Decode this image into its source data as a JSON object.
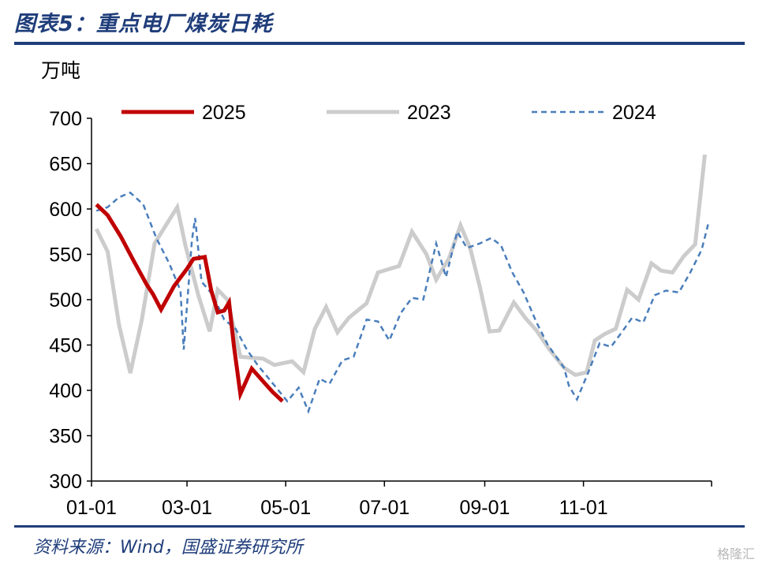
{
  "header": {
    "title": "图表5：重点电厂煤炭日耗"
  },
  "footer": {
    "source": "资料来源：Wind，国盛证券研究所",
    "watermark": "格隆汇"
  },
  "chart_data": {
    "type": "line",
    "title": "图表5：重点电厂煤炭日耗",
    "ylabel": "万吨",
    "ylim": [
      300,
      700
    ],
    "yticks": [
      300,
      350,
      400,
      450,
      500,
      550,
      600,
      650,
      700
    ],
    "xlim": [
      0,
      364
    ],
    "xticks": [
      {
        "label": "01-01",
        "day": 0
      },
      {
        "label": "03-01",
        "day": 59
      },
      {
        "label": "05-01",
        "day": 120
      },
      {
        "label": "07-01",
        "day": 181
      },
      {
        "label": "09-01",
        "day": 243
      },
      {
        "label": "11-01",
        "day": 304
      }
    ],
    "legend": {
      "placement": "top"
    },
    "grid": false,
    "series": [
      {
        "name": "2025",
        "color": "#c00000",
        "style": "solid-thick",
        "points": [
          [
            3,
            605
          ],
          [
            10,
            593
          ],
          [
            18,
            570
          ],
          [
            26,
            543
          ],
          [
            34,
            517
          ],
          [
            38,
            506
          ],
          [
            43,
            489
          ],
          [
            51,
            515
          ],
          [
            59,
            534
          ],
          [
            63,
            545
          ],
          [
            70,
            547
          ],
          [
            74,
            510
          ],
          [
            78,
            486
          ],
          [
            82,
            488
          ],
          [
            85,
            497
          ],
          [
            88,
            449
          ],
          [
            92,
            396
          ],
          [
            99,
            424
          ],
          [
            106,
            410
          ],
          [
            112,
            398
          ],
          [
            118,
            388
          ]
        ]
      },
      {
        "name": "2023",
        "color": "#cccccc",
        "style": "solid",
        "points": [
          [
            3,
            578
          ],
          [
            10,
            553
          ],
          [
            17,
            472
          ],
          [
            24,
            419
          ],
          [
            31,
            477
          ],
          [
            39,
            562
          ],
          [
            47,
            585
          ],
          [
            53,
            602
          ],
          [
            58,
            560
          ],
          [
            66,
            505
          ],
          [
            73,
            465
          ],
          [
            78,
            511
          ],
          [
            84,
            500
          ],
          [
            92,
            437
          ],
          [
            99,
            436
          ],
          [
            106,
            435
          ],
          [
            113,
            428
          ],
          [
            124,
            432
          ],
          [
            131,
            420
          ],
          [
            138,
            468
          ],
          [
            145,
            492
          ],
          [
            152,
            464
          ],
          [
            159,
            480
          ],
          [
            170,
            496
          ],
          [
            177,
            530
          ],
          [
            190,
            537
          ],
          [
            198,
            575
          ],
          [
            207,
            550
          ],
          [
            213,
            522
          ],
          [
            221,
            546
          ],
          [
            228,
            582
          ],
          [
            234,
            557
          ],
          [
            240,
            514
          ],
          [
            246,
            465
          ],
          [
            252,
            466
          ],
          [
            261,
            497
          ],
          [
            268,
            480
          ],
          [
            275,
            466
          ],
          [
            283,
            445
          ],
          [
            292,
            425
          ],
          [
            299,
            417
          ],
          [
            306,
            420
          ],
          [
            311,
            455
          ],
          [
            317,
            462
          ],
          [
            324,
            468
          ],
          [
            331,
            511
          ],
          [
            338,
            500
          ],
          [
            346,
            540
          ],
          [
            352,
            532
          ],
          [
            359,
            530
          ],
          [
            366,
            548
          ],
          [
            373,
            561
          ],
          [
            379,
            660
          ]
        ]
      },
      {
        "name": "2024",
        "color": "#4a7ebb",
        "style": "dashed",
        "points": [
          [
            3,
            598
          ],
          [
            10,
            602
          ],
          [
            17,
            613
          ],
          [
            24,
            618
          ],
          [
            32,
            605
          ],
          [
            40,
            568
          ],
          [
            48,
            540
          ],
          [
            55,
            510
          ],
          [
            57,
            445
          ],
          [
            62,
            565
          ],
          [
            64,
            590
          ],
          [
            68,
            520
          ],
          [
            75,
            505
          ],
          [
            82,
            478
          ],
          [
            89,
            468
          ],
          [
            96,
            445
          ],
          [
            103,
            427
          ],
          [
            110,
            412
          ],
          [
            121,
            388
          ],
          [
            128,
            403
          ],
          [
            134,
            377
          ],
          [
            141,
            413
          ],
          [
            147,
            407
          ],
          [
            155,
            433
          ],
          [
            162,
            437
          ],
          [
            170,
            478
          ],
          [
            177,
            476
          ],
          [
            184,
            455
          ],
          [
            191,
            485
          ],
          [
            198,
            502
          ],
          [
            205,
            500
          ],
          [
            213,
            562
          ],
          [
            219,
            525
          ],
          [
            226,
            575
          ],
          [
            232,
            557
          ],
          [
            240,
            562
          ],
          [
            247,
            568
          ],
          [
            253,
            560
          ],
          [
            260,
            530
          ],
          [
            267,
            508
          ],
          [
            275,
            475
          ],
          [
            282,
            450
          ],
          [
            292,
            425
          ],
          [
            295,
            405
          ],
          [
            300,
            390
          ],
          [
            307,
            420
          ],
          [
            314,
            452
          ],
          [
            321,
            448
          ],
          [
            328,
            465
          ],
          [
            334,
            480
          ],
          [
            341,
            475
          ],
          [
            348,
            505
          ],
          [
            355,
            510
          ],
          [
            363,
            508
          ],
          [
            370,
            530
          ],
          [
            377,
            555
          ],
          [
            381,
            583
          ]
        ]
      }
    ]
  }
}
